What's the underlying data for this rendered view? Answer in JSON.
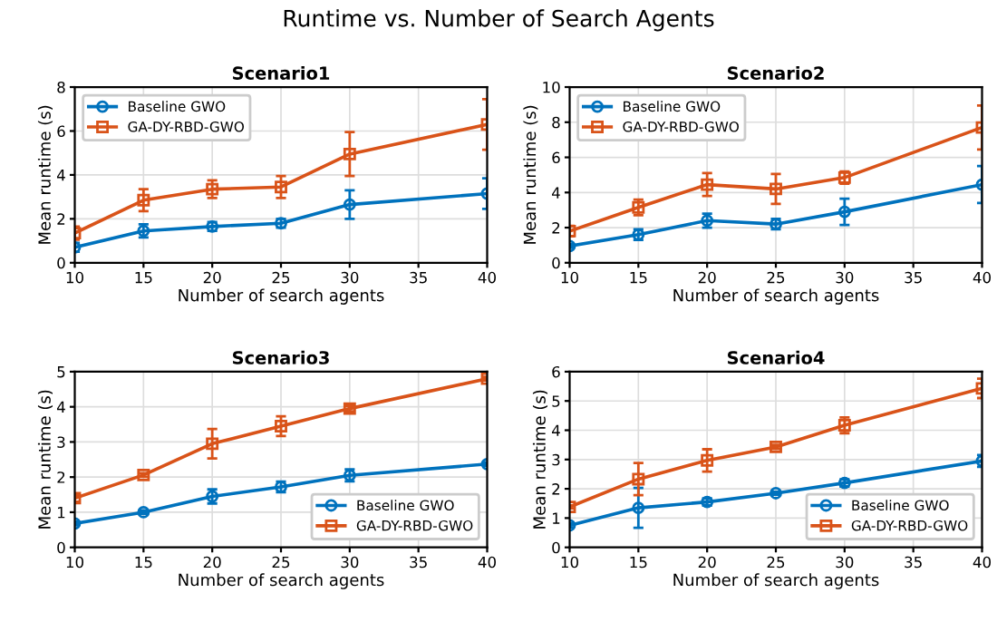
{
  "chart_data": [
    {
      "type": "line",
      "title": "Scenario1",
      "annotations": [
        "Runtime vs. Number of Search Agents"
      ],
      "xlabel": "Number of search agents",
      "ylabel": "Mean runtime (s)",
      "x": [
        10,
        15,
        20,
        25,
        30,
        40
      ],
      "xlim": [
        10,
        40
      ],
      "xticks": [
        10,
        15,
        20,
        25,
        30,
        35,
        40
      ],
      "ylim": [
        0,
        8
      ],
      "yticks": [
        0,
        2,
        4,
        6,
        8
      ],
      "grid": true,
      "legend": "top left",
      "series": [
        {
          "name": "Baseline GWO",
          "color": "#0072bd",
          "marker": "circle",
          "values": [
            0.7,
            1.45,
            1.65,
            1.8,
            2.65,
            3.15
          ],
          "errors": [
            0.2,
            0.3,
            0.2,
            0.2,
            0.65,
            0.7
          ]
        },
        {
          "name": "GA-DY-RBD-GWO",
          "color": "#d95319",
          "marker": "square",
          "values": [
            1.35,
            2.85,
            3.35,
            3.45,
            4.95,
            6.3
          ],
          "errors": [
            0.3,
            0.5,
            0.4,
            0.5,
            1.0,
            1.15
          ]
        }
      ]
    },
    {
      "type": "line",
      "title": "Scenario2",
      "xlabel": "Number of search agents",
      "ylabel": "Mean runtime (s)",
      "x": [
        10,
        15,
        20,
        25,
        30,
        40
      ],
      "xlim": [
        10,
        40
      ],
      "xticks": [
        10,
        15,
        20,
        25,
        30,
        35,
        40
      ],
      "ylim": [
        0,
        10
      ],
      "yticks": [
        0,
        2,
        4,
        6,
        8,
        10
      ],
      "grid": true,
      "legend": "top left",
      "series": [
        {
          "name": "Baseline GWO",
          "color": "#0072bd",
          "marker": "circle",
          "values": [
            0.95,
            1.6,
            2.4,
            2.2,
            2.9,
            4.45
          ],
          "errors": [
            0.1,
            0.3,
            0.4,
            0.3,
            0.75,
            1.05
          ]
        },
        {
          "name": "GA-DY-RBD-GWO",
          "color": "#d95319",
          "marker": "square",
          "values": [
            1.8,
            3.15,
            4.45,
            4.2,
            4.85,
            7.7
          ],
          "errors": [
            0.3,
            0.45,
            0.65,
            0.85,
            0.35,
            1.25
          ]
        }
      ]
    },
    {
      "type": "line",
      "title": "Scenario3",
      "xlabel": "Number of search agents",
      "ylabel": "Mean runtime (s)",
      "x": [
        10,
        15,
        20,
        25,
        30,
        40
      ],
      "xlim": [
        10,
        40
      ],
      "xticks": [
        10,
        15,
        20,
        25,
        30,
        35,
        40
      ],
      "ylim": [
        0,
        5
      ],
      "yticks": [
        0,
        1,
        2,
        3,
        4,
        5
      ],
      "grid": true,
      "legend": "bottom right",
      "series": [
        {
          "name": "Baseline GWO",
          "color": "#0072bd",
          "marker": "circle",
          "values": [
            0.68,
            1.0,
            1.45,
            1.72,
            2.05,
            2.37
          ],
          "errors": [
            0.05,
            0.05,
            0.2,
            0.15,
            0.17,
            0.05
          ]
        },
        {
          "name": "GA-DY-RBD-GWO",
          "color": "#d95319",
          "marker": "square",
          "values": [
            1.4,
            2.06,
            2.95,
            3.45,
            3.95,
            4.8
          ],
          "errors": [
            0.1,
            0.05,
            0.42,
            0.28,
            0.08,
            0.05
          ]
        }
      ]
    },
    {
      "type": "line",
      "title": "Scenario4",
      "xlabel": "Number of search agents",
      "ylabel": "Mean runtime (s)",
      "x": [
        10,
        15,
        20,
        25,
        30,
        40
      ],
      "xlim": [
        10,
        40
      ],
      "xticks": [
        10,
        15,
        20,
        25,
        30,
        35,
        40
      ],
      "ylim": [
        0,
        6
      ],
      "yticks": [
        0,
        1,
        2,
        3,
        4,
        5,
        6
      ],
      "grid": true,
      "legend": "bottom right",
      "series": [
        {
          "name": "Baseline GWO",
          "color": "#0072bd",
          "marker": "circle",
          "values": [
            0.75,
            1.35,
            1.55,
            1.85,
            2.2,
            2.95
          ],
          "errors": [
            0.07,
            0.68,
            0.12,
            0.05,
            0.12,
            0.2
          ]
        },
        {
          "name": "GA-DY-RBD-GWO",
          "color": "#d95319",
          "marker": "square",
          "values": [
            1.38,
            2.33,
            2.97,
            3.43,
            4.17,
            5.43
          ],
          "errors": [
            0.05,
            0.55,
            0.38,
            0.07,
            0.27,
            0.33
          ]
        }
      ]
    }
  ]
}
